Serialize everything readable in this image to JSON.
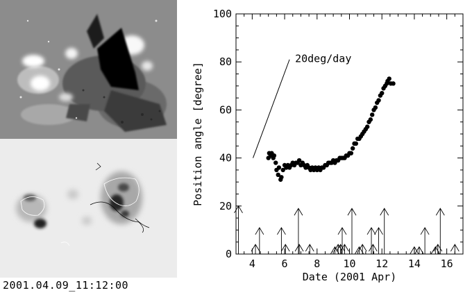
{
  "images": {
    "timestamp": "2001.04.09_11:12:00"
  },
  "chart_data": {
    "type": "scatter",
    "title": "",
    "xlabel": "Date (2001 Apr)",
    "ylabel": "Position angle [degree]",
    "xlim": [
      3.0,
      17.0
    ],
    "ylim": [
      0,
      100
    ],
    "xticks": [
      4,
      6,
      8,
      10,
      12,
      14,
      16
    ],
    "yticks": [
      0,
      20,
      40,
      60,
      80,
      100
    ],
    "annotation": {
      "text": "20deg/day",
      "line": {
        "x": [
          4.05,
          6.3
        ],
        "y": [
          40,
          81
        ]
      }
    },
    "series": [
      {
        "points": [
          [
            5.0,
            40
          ],
          [
            5.05,
            42
          ],
          [
            5.15,
            41
          ],
          [
            5.2,
            42
          ],
          [
            5.3,
            40
          ],
          [
            5.35,
            41
          ],
          [
            5.45,
            38
          ],
          [
            5.5,
            35
          ],
          [
            5.6,
            33
          ],
          [
            5.65,
            36
          ],
          [
            5.75,
            31
          ],
          [
            5.8,
            32
          ],
          [
            5.9,
            35
          ],
          [
            6.0,
            37
          ],
          [
            6.1,
            36
          ],
          [
            6.2,
            37
          ],
          [
            6.3,
            36
          ],
          [
            6.4,
            37
          ],
          [
            6.5,
            38
          ],
          [
            6.6,
            37
          ],
          [
            6.7,
            38
          ],
          [
            6.8,
            38
          ],
          [
            6.9,
            39
          ],
          [
            7.0,
            37
          ],
          [
            7.1,
            38
          ],
          [
            7.2,
            37
          ],
          [
            7.3,
            36
          ],
          [
            7.4,
            37
          ],
          [
            7.5,
            36
          ],
          [
            7.6,
            35
          ],
          [
            7.7,
            36
          ],
          [
            7.8,
            35
          ],
          [
            7.9,
            36
          ],
          [
            8.0,
            35
          ],
          [
            8.1,
            36
          ],
          [
            8.2,
            35
          ],
          [
            8.3,
            36
          ],
          [
            8.4,
            36
          ],
          [
            8.5,
            37
          ],
          [
            8.6,
            37
          ],
          [
            8.7,
            38
          ],
          [
            8.8,
            38
          ],
          [
            8.9,
            38
          ],
          [
            9.0,
            39
          ],
          [
            9.1,
            38
          ],
          [
            9.2,
            39
          ],
          [
            9.3,
            39
          ],
          [
            9.4,
            40
          ],
          [
            9.5,
            40
          ],
          [
            9.6,
            40
          ],
          [
            9.7,
            40
          ],
          [
            9.8,
            41
          ],
          [
            9.9,
            41
          ],
          [
            10.0,
            42
          ],
          [
            10.1,
            42
          ],
          [
            10.2,
            44
          ],
          [
            10.3,
            46
          ],
          [
            10.4,
            46
          ],
          [
            10.5,
            48
          ],
          [
            10.6,
            48
          ],
          [
            10.7,
            49
          ],
          [
            10.8,
            50
          ],
          [
            10.9,
            51
          ],
          [
            11.0,
            52
          ],
          [
            11.1,
            53
          ],
          [
            11.2,
            55
          ],
          [
            11.3,
            56
          ],
          [
            11.4,
            58
          ],
          [
            11.5,
            60
          ],
          [
            11.6,
            61
          ],
          [
            11.7,
            63
          ],
          [
            11.8,
            64
          ],
          [
            11.9,
            66
          ],
          [
            12.0,
            67
          ],
          [
            12.1,
            69
          ],
          [
            12.2,
            70
          ],
          [
            12.3,
            71
          ],
          [
            12.35,
            72
          ],
          [
            12.45,
            73
          ],
          [
            12.55,
            71
          ],
          [
            12.7,
            71
          ]
        ]
      }
    ],
    "event_arrows": [
      {
        "x": 3.15,
        "height": 20
      },
      {
        "x": 4.2,
        "height": 4
      },
      {
        "x": 4.45,
        "height": 11
      },
      {
        "x": 5.8,
        "height": 11
      },
      {
        "x": 6.05,
        "height": 4
      },
      {
        "x": 6.85,
        "height": 19
      },
      {
        "x": 6.9,
        "height": 4
      },
      {
        "x": 7.55,
        "height": 4
      },
      {
        "x": 9.1,
        "height": 3
      },
      {
        "x": 9.3,
        "height": 4
      },
      {
        "x": 9.45,
        "height": 4
      },
      {
        "x": 9.55,
        "height": 11
      },
      {
        "x": 9.7,
        "height": 4
      },
      {
        "x": 10.15,
        "height": 19
      },
      {
        "x": 10.6,
        "height": 3
      },
      {
        "x": 10.8,
        "height": 4
      },
      {
        "x": 11.35,
        "height": 11
      },
      {
        "x": 11.45,
        "height": 4
      },
      {
        "x": 11.8,
        "height": 11
      },
      {
        "x": 12.15,
        "height": 19
      },
      {
        "x": 14.0,
        "height": 3
      },
      {
        "x": 14.3,
        "height": 3
      },
      {
        "x": 14.65,
        "height": 11
      },
      {
        "x": 15.3,
        "height": 3
      },
      {
        "x": 15.45,
        "height": 4
      },
      {
        "x": 15.6,
        "height": 19
      },
      {
        "x": 16.5,
        "height": 4
      }
    ]
  }
}
